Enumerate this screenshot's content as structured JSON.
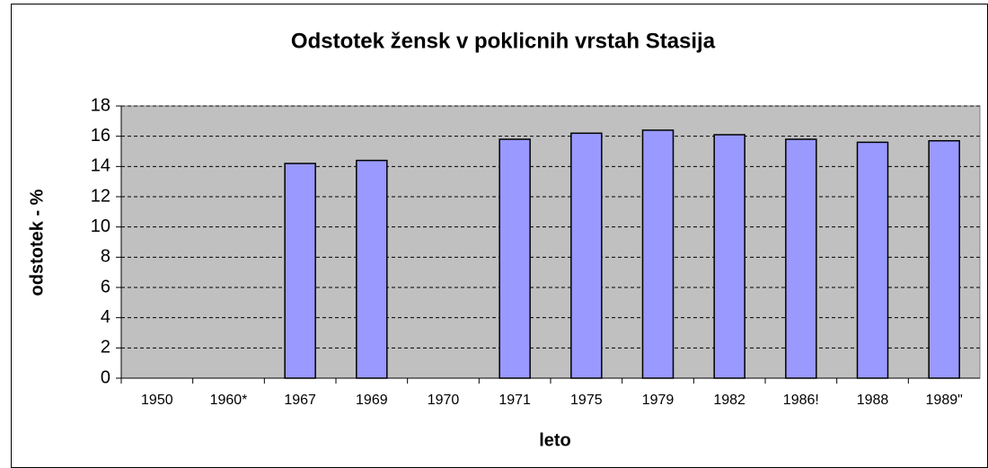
{
  "chart_data": {
    "type": "bar",
    "title": "Odstotek žensk v poklicnih vrstah Stasija",
    "x_label": "leto",
    "y_label": "odstotek - %",
    "categories": [
      "1950",
      "1960*",
      "1967",
      "1969",
      "1970",
      "1971",
      "1975",
      "1979",
      "1982",
      "1986!",
      "1988",
      "1989\""
    ],
    "values": [
      null,
      null,
      14.2,
      14.4,
      null,
      15.8,
      16.2,
      16.4,
      16.1,
      15.8,
      15.6,
      15.7
    ],
    "color": "#9999ff",
    "plot_background": "#c0c0c0",
    "ylim": [
      0,
      18
    ],
    "yticks": [
      0,
      2,
      4,
      6,
      8,
      10,
      12,
      14,
      16,
      18
    ],
    "grid": true
  }
}
